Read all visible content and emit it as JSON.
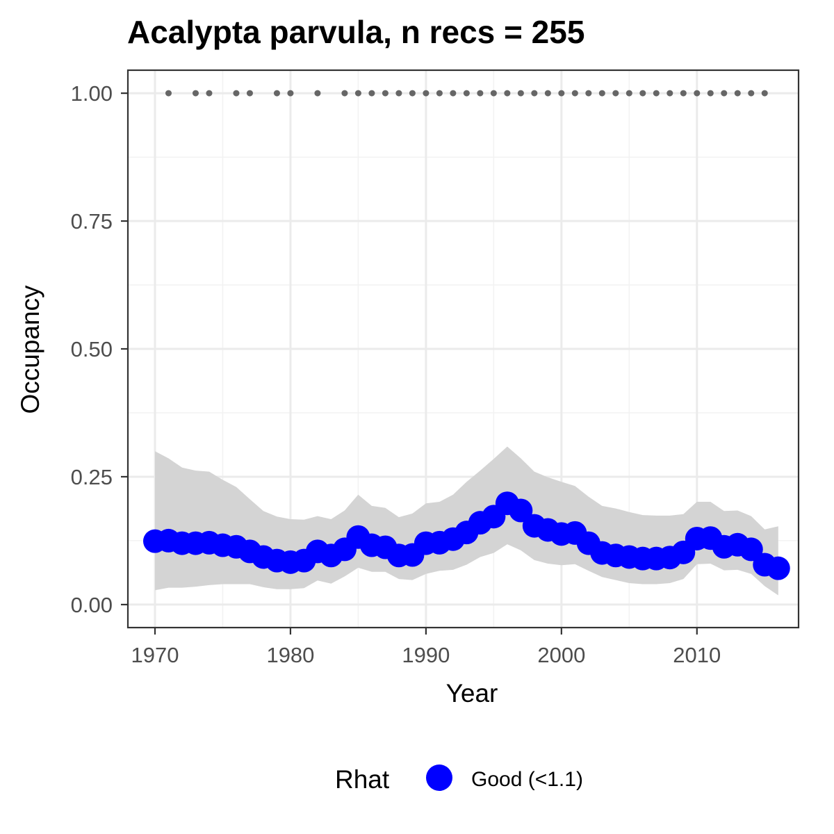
{
  "chart_data": {
    "type": "line",
    "title": "Acalypta parvula, n recs = 255",
    "xlabel": "Year",
    "ylabel": "Occupancy",
    "xlim": [
      1968,
      2017.5
    ],
    "ylim": [
      -0.045,
      1.045
    ],
    "x_ticks": [
      1970,
      1980,
      1990,
      2000,
      2010
    ],
    "y_ticks": [
      0.0,
      0.25,
      0.5,
      0.75,
      1.0
    ],
    "x_tick_labels": [
      "1970",
      "1980",
      "1990",
      "2000",
      "2010"
    ],
    "y_tick_labels": [
      "0.00",
      "0.25",
      "0.50",
      "0.75",
      "1.00"
    ],
    "grid": true,
    "legend": {
      "title": "Rhat",
      "position": "bottom",
      "entries": [
        {
          "label": "Good (<1.1)",
          "color": "#0000ff"
        }
      ]
    },
    "series": [
      {
        "name": "Good (<1.1)",
        "color": "#0000ff",
        "x": [
          1970,
          1971,
          1972,
          1973,
          1974,
          1975,
          1976,
          1977,
          1978,
          1979,
          1980,
          1981,
          1982,
          1983,
          1984,
          1985,
          1986,
          1987,
          1988,
          1989,
          1990,
          1991,
          1992,
          1993,
          1994,
          1995,
          1996,
          1997,
          1998,
          1999,
          2000,
          2001,
          2002,
          2003,
          2004,
          2005,
          2006,
          2007,
          2008,
          2009,
          2010,
          2011,
          2012,
          2013,
          2014,
          2015,
          2016
        ],
        "y": [
          0.124,
          0.125,
          0.12,
          0.12,
          0.121,
          0.116,
          0.113,
          0.104,
          0.093,
          0.086,
          0.083,
          0.086,
          0.104,
          0.096,
          0.108,
          0.132,
          0.116,
          0.112,
          0.096,
          0.097,
          0.12,
          0.121,
          0.128,
          0.141,
          0.16,
          0.172,
          0.198,
          0.184,
          0.154,
          0.146,
          0.138,
          0.14,
          0.12,
          0.101,
          0.096,
          0.093,
          0.09,
          0.09,
          0.092,
          0.102,
          0.129,
          0.13,
          0.113,
          0.117,
          0.108,
          0.078,
          0.071
        ],
        "lower": [
          0.028,
          0.033,
          0.033,
          0.035,
          0.038,
          0.04,
          0.04,
          0.04,
          0.034,
          0.03,
          0.03,
          0.032,
          0.047,
          0.041,
          0.055,
          0.072,
          0.064,
          0.064,
          0.05,
          0.048,
          0.06,
          0.066,
          0.068,
          0.078,
          0.093,
          0.101,
          0.118,
          0.106,
          0.087,
          0.08,
          0.077,
          0.079,
          0.066,
          0.054,
          0.048,
          0.042,
          0.04,
          0.04,
          0.042,
          0.05,
          0.079,
          0.08,
          0.067,
          0.068,
          0.06,
          0.036,
          0.018
        ],
        "upper": [
          0.3,
          0.286,
          0.268,
          0.262,
          0.26,
          0.244,
          0.23,
          0.206,
          0.183,
          0.172,
          0.167,
          0.166,
          0.173,
          0.167,
          0.184,
          0.215,
          0.193,
          0.189,
          0.171,
          0.178,
          0.198,
          0.201,
          0.215,
          0.24,
          0.262,
          0.285,
          0.309,
          0.286,
          0.26,
          0.249,
          0.24,
          0.232,
          0.211,
          0.193,
          0.188,
          0.181,
          0.175,
          0.174,
          0.174,
          0.177,
          0.201,
          0.201,
          0.183,
          0.184,
          0.173,
          0.147,
          0.153
        ]
      }
    ],
    "records": {
      "color": "#666666",
      "y": 1.0,
      "x": [
        1971,
        1973,
        1974,
        1976,
        1977,
        1979,
        1980,
        1982,
        1984,
        1985,
        1986,
        1987,
        1988,
        1989,
        1990,
        1991,
        1992,
        1993,
        1994,
        1995,
        1996,
        1997,
        1998,
        1999,
        2000,
        2001,
        2002,
        2003,
        2004,
        2005,
        2006,
        2007,
        2008,
        2009,
        2010,
        2011,
        2012,
        2013,
        2014,
        2015
      ]
    },
    "ribbon_color": "#d4d4d4"
  }
}
